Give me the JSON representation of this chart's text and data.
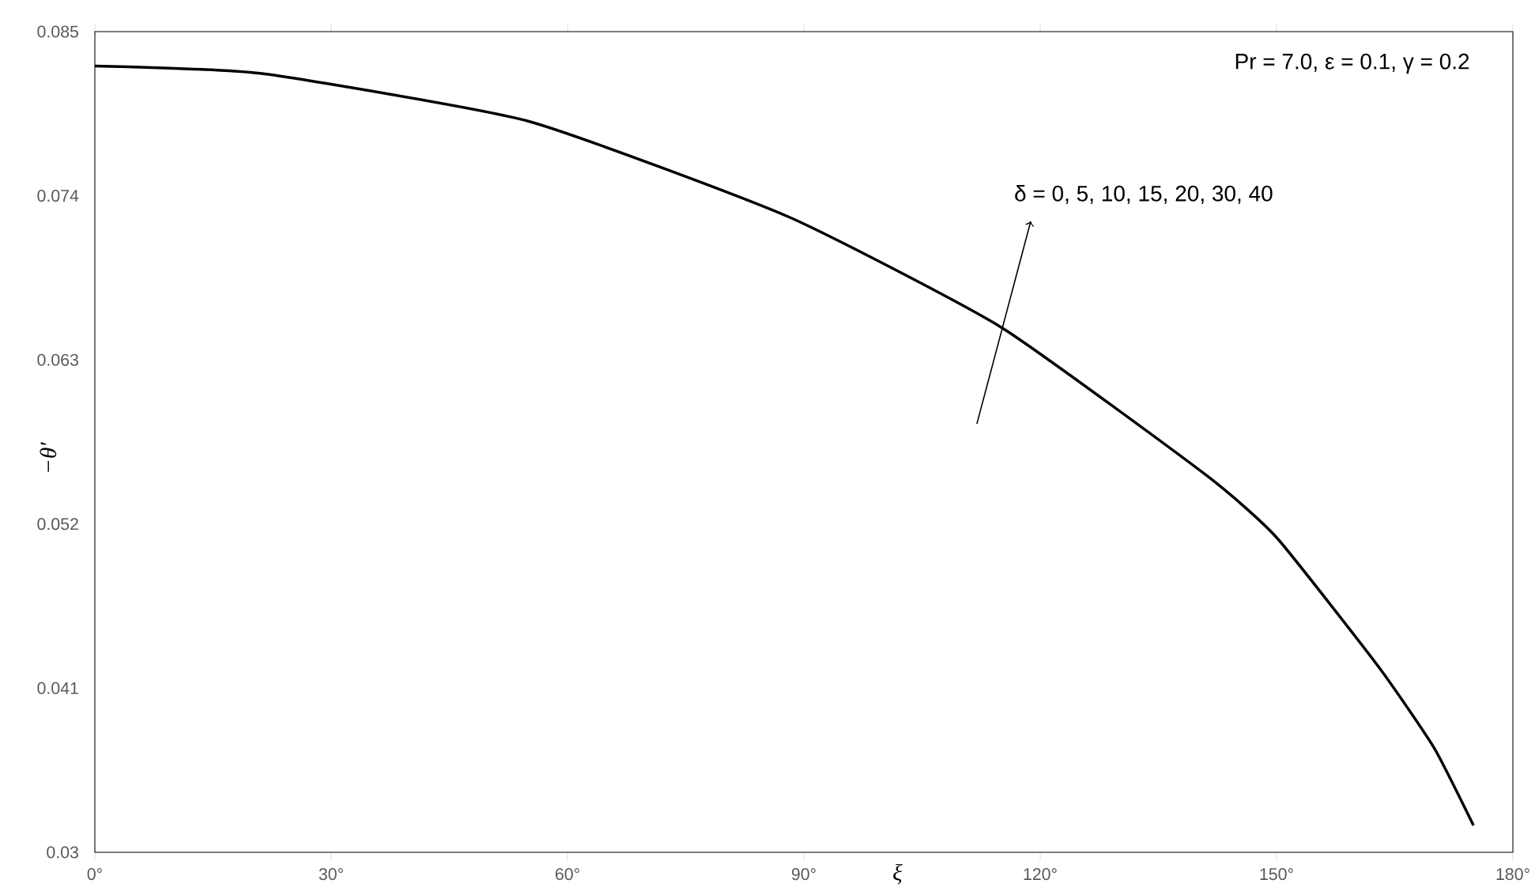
{
  "chart_data": {
    "type": "line",
    "xlabel": "ξ",
    "ylabel": "−θ′",
    "x": [
      0,
      21,
      55,
      88,
      115,
      141,
      150,
      163,
      170,
      175
    ],
    "values": [
      0.0827,
      0.0822,
      0.079,
      0.0726,
      0.0652,
      0.0553,
      0.0511,
      0.0424,
      0.037,
      0.0318
    ],
    "color": "#000000",
    "xlim": [
      0,
      180
    ],
    "xticks": [
      {
        "value": 0,
        "label": "0°"
      },
      {
        "value": 30,
        "label": "30°"
      },
      {
        "value": 60,
        "label": "60°"
      },
      {
        "value": 90,
        "label": "90°"
      },
      {
        "value": 120,
        "label": "120°"
      },
      {
        "value": 150,
        "label": "150°"
      },
      {
        "value": 180,
        "label": "180°"
      }
    ],
    "ylim": [
      0.03,
      0.085
    ],
    "yticks": [
      0.03,
      0.041,
      0.052,
      0.063,
      0.074,
      0.085
    ],
    "annotations": [
      "Pr = 7.0, ε = 0.1, γ = 0.2",
      "δ = 0, 5, 10, 15, 20, 30, 40"
    ]
  }
}
